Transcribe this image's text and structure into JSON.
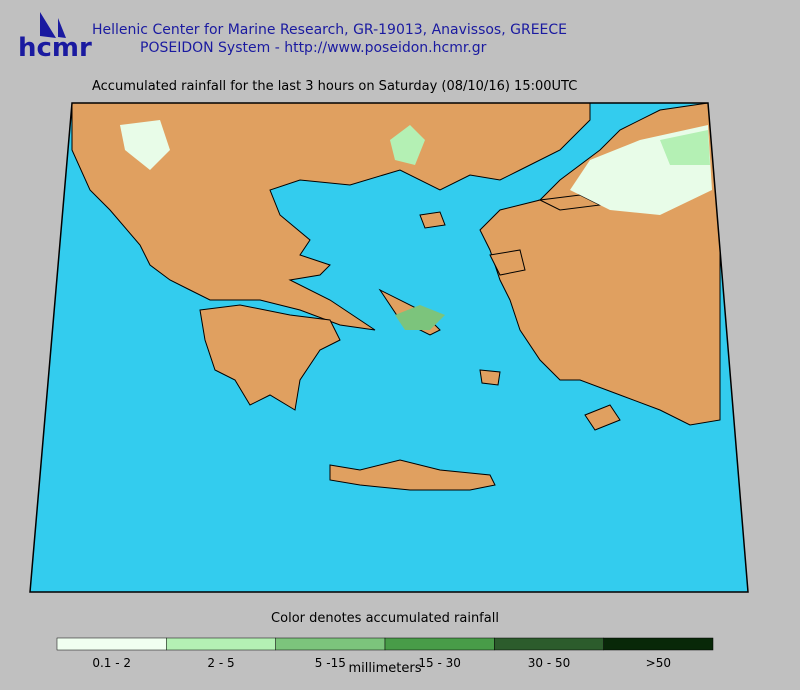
{
  "header": {
    "logo": "hcmr",
    "org": "Hellenic Center for Marine Research, GR-19013, Anavissos, GREECE",
    "system": "POSEIDON System - http://www.poseidon.hcmr.gr"
  },
  "title": "Accumulated rainfall for the last 3 hours on Saturday (08/10/16) 15:00UTC",
  "legend": {
    "title": "Color denotes accumulated rainfall",
    "bins": [
      {
        "label": "0.1 - 2",
        "color": "#f0fff0"
      },
      {
        "label": "2 - 5",
        "color": "#b4f0b4"
      },
      {
        "label": "5 -15",
        "color": "#7cc47c"
      },
      {
        "label": "15 - 30",
        "color": "#489c48"
      },
      {
        "label": "30 - 50",
        "color": "#2c5c2c"
      },
      {
        "label": ">50",
        "color": "#082808"
      }
    ],
    "unit": "millimeters"
  }
}
